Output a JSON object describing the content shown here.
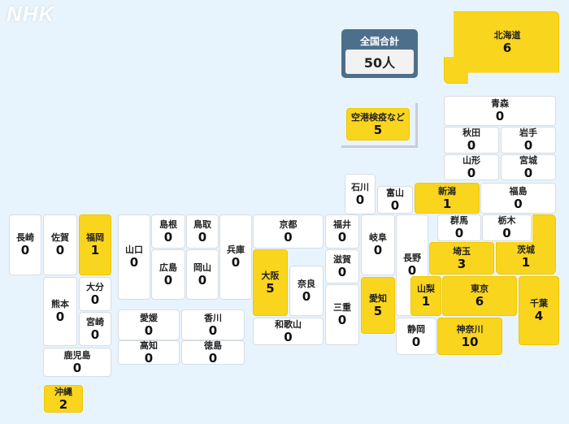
{
  "logo": "NHK",
  "total": {
    "label": "全国合計",
    "value": "50人"
  },
  "colors": {
    "background": "#e8f4fd",
    "has_cases": "#fad51e",
    "no_cases": "#ffffff",
    "total_panel": "#4d6f8c"
  },
  "prefectures": [
    {
      "id": "hokkaido",
      "name": "北海道",
      "count": 6
    },
    {
      "id": "aomori",
      "name": "青森",
      "count": 0
    },
    {
      "id": "akita",
      "name": "秋田",
      "count": 0
    },
    {
      "id": "iwate",
      "name": "岩手",
      "count": 0
    },
    {
      "id": "yamagata",
      "name": "山形",
      "count": 0
    },
    {
      "id": "miyagi",
      "name": "宮城",
      "count": 0
    },
    {
      "id": "ishikawa",
      "name": "石川",
      "count": 0
    },
    {
      "id": "toyama",
      "name": "富山",
      "count": 0
    },
    {
      "id": "niigata",
      "name": "新潟",
      "count": 1
    },
    {
      "id": "fukushima",
      "name": "福島",
      "count": 0
    },
    {
      "id": "gunma",
      "name": "群馬",
      "count": 0
    },
    {
      "id": "tochigi",
      "name": "栃木",
      "count": 0
    },
    {
      "id": "ibaraki",
      "name": "茨城",
      "count": 1
    },
    {
      "id": "saitama",
      "name": "埼玉",
      "count": 3
    },
    {
      "id": "nagano",
      "name": "長野",
      "count": 0
    },
    {
      "id": "yamanashi",
      "name": "山梨",
      "count": 1
    },
    {
      "id": "tokyo",
      "name": "東京",
      "count": 6
    },
    {
      "id": "chiba",
      "name": "千葉",
      "count": 4
    },
    {
      "id": "kanagawa",
      "name": "神奈川",
      "count": 10
    },
    {
      "id": "shizuoka",
      "name": "静岡",
      "count": 0
    },
    {
      "id": "gifu",
      "name": "岐阜",
      "count": 0
    },
    {
      "id": "aichi",
      "name": "愛知",
      "count": 5
    },
    {
      "id": "mie",
      "name": "三重",
      "count": 0
    },
    {
      "id": "fukui",
      "name": "福井",
      "count": 0
    },
    {
      "id": "shiga",
      "name": "滋賀",
      "count": 0
    },
    {
      "id": "kyoto",
      "name": "京都",
      "count": 0
    },
    {
      "id": "osaka",
      "name": "大阪",
      "count": 5
    },
    {
      "id": "nara",
      "name": "奈良",
      "count": 0
    },
    {
      "id": "wakayama",
      "name": "和歌山",
      "count": 0
    },
    {
      "id": "hyogo",
      "name": "兵庫",
      "count": 0
    },
    {
      "id": "tottori",
      "name": "鳥取",
      "count": 0
    },
    {
      "id": "okayama",
      "name": "岡山",
      "count": 0
    },
    {
      "id": "shimane",
      "name": "島根",
      "count": 0
    },
    {
      "id": "hiroshima",
      "name": "広島",
      "count": 0
    },
    {
      "id": "yamaguchi",
      "name": "山口",
      "count": 0
    },
    {
      "id": "ehime",
      "name": "愛媛",
      "count": 0
    },
    {
      "id": "kagawa",
      "name": "香川",
      "count": 0
    },
    {
      "id": "kochi",
      "name": "高知",
      "count": 0
    },
    {
      "id": "tokushima",
      "name": "徳島",
      "count": 0
    },
    {
      "id": "nagasaki",
      "name": "長崎",
      "count": 0
    },
    {
      "id": "saga",
      "name": "佐賀",
      "count": 0
    },
    {
      "id": "fukuoka",
      "name": "福岡",
      "count": 1
    },
    {
      "id": "kumamoto",
      "name": "熊本",
      "count": 0
    },
    {
      "id": "oita",
      "name": "大分",
      "count": 0
    },
    {
      "id": "miyazaki",
      "name": "宮崎",
      "count": 0
    },
    {
      "id": "kagoshima",
      "name": "鹿児島",
      "count": 0
    },
    {
      "id": "okinawa",
      "name": "沖縄",
      "count": 2
    },
    {
      "id": "airport",
      "name": "空港検疫など",
      "count": 5
    }
  ]
}
